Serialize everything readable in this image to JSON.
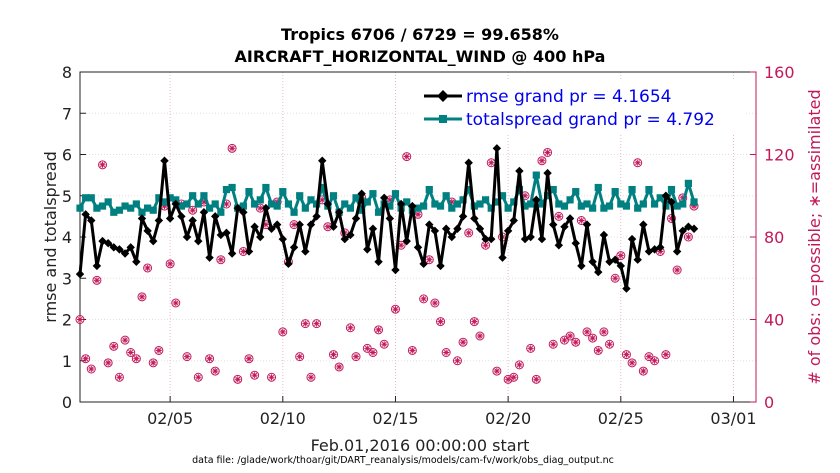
{
  "chart_data": {
    "type": "line",
    "title_line1": "Tropics 6706 / 6729 = 99.658%",
    "title_line2": "AIRCRAFT_HORIZONTAL_WIND @ 400 hPa",
    "xlabel": "Feb.01,2016 00:00:00 start",
    "ylabel_left": "rmse and totalspread",
    "ylabel_right": "# of obs: o=possible; ∗=assimilated",
    "footnote": "data file: /glade/work/thoar/git/DART_reanalysis/models/cam-fv/work/obs_diag_output.nc",
    "x_range_days": [
      1,
      31
    ],
    "x_ticks": [
      {
        "day": 5,
        "label": "02/05"
      },
      {
        "day": 10,
        "label": "02/10"
      },
      {
        "day": 15,
        "label": "02/15"
      },
      {
        "day": 20,
        "label": "02/20"
      },
      {
        "day": 25,
        "label": "02/25"
      },
      {
        "day": 30,
        "label": "03/01"
      }
    ],
    "y_left_range": [
      0,
      8
    ],
    "y_left_ticks": [
      "0",
      "1",
      "2",
      "3",
      "4",
      "5",
      "6",
      "7",
      "8"
    ],
    "y_right_range": [
      0,
      160
    ],
    "y_right_ticks": [
      "0",
      "40",
      "80",
      "120",
      "160"
    ],
    "colors": {
      "rmse": "#000000",
      "spread": "#008080",
      "obs": "#c2185b",
      "legend_text": "#0000ee"
    },
    "series": [
      {
        "name": "rmse grand pr = 4.1654",
        "key": "rmse",
        "marker": "diamond",
        "start_day": 1.0,
        "step_day": 0.25,
        "values": [
          3.1,
          4.55,
          4.4,
          3.3,
          3.9,
          3.85,
          3.75,
          3.7,
          3.6,
          3.75,
          3.4,
          4.45,
          4.15,
          3.9,
          4.4,
          5.85,
          4.45,
          4.8,
          4.5,
          4.0,
          4.4,
          3.9,
          4.6,
          3.5,
          4.5,
          4.05,
          4.1,
          3.6,
          4.7,
          4.6,
          3.65,
          4.25,
          4.0,
          4.7,
          4.2,
          4.3,
          3.95,
          3.35,
          3.75,
          4.3,
          3.65,
          4.3,
          4.5,
          5.85,
          4.8,
          4.25,
          4.6,
          3.95,
          4.05,
          4.45,
          5.05,
          3.7,
          4.2,
          3.4,
          4.95,
          4.45,
          3.2,
          4.8,
          3.9,
          4.75,
          3.75,
          3.35,
          4.3,
          4.15,
          3.3,
          4.2,
          4.0,
          4.2,
          4.5,
          5.8,
          4.45,
          4.2,
          3.95,
          3.95,
          6.15,
          3.5,
          4.15,
          4.4,
          5.6,
          3.95,
          4.0,
          4.9,
          3.95,
          5.55,
          4.3,
          3.8,
          4.25,
          4.45,
          3.85,
          3.3,
          4.3,
          3.4,
          3.15,
          4.05,
          3.4,
          3.45,
          3.3,
          2.75,
          3.95,
          3.45,
          4.3,
          3.65,
          3.7,
          3.75,
          5.0,
          4.85,
          3.65,
          4.15,
          4.25,
          4.2
        ]
      },
      {
        "name": "totalspread grand pr = 4.792",
        "key": "spread",
        "marker": "square",
        "start_day": 1.0,
        "step_day": 0.25,
        "values": [
          4.7,
          4.95,
          4.95,
          4.7,
          4.75,
          4.85,
          4.6,
          4.65,
          4.75,
          4.7,
          4.8,
          4.6,
          4.7,
          4.65,
          4.95,
          4.85,
          4.95,
          4.9,
          4.75,
          4.8,
          5.0,
          4.8,
          5.0,
          4.7,
          4.8,
          4.6,
          5.15,
          5.2,
          4.7,
          4.75,
          5.1,
          4.8,
          4.9,
          5.2,
          4.8,
          4.75,
          5.1,
          4.8,
          4.6,
          5.0,
          4.7,
          4.9,
          4.8,
          5.2,
          4.75,
          5.0,
          4.6,
          4.8,
          4.7,
          4.95,
          4.65,
          4.85,
          5.05,
          4.6,
          4.8,
          4.75,
          5.05,
          4.7,
          4.85,
          4.65,
          4.7,
          4.75,
          5.15,
          4.8,
          4.75,
          5.0,
          4.7,
          4.8,
          4.9,
          5.15,
          4.75,
          4.8,
          4.9,
          4.7,
          4.85,
          5.0,
          4.7,
          4.85,
          5.15,
          4.75,
          4.8,
          5.5,
          4.8,
          5.0,
          5.15,
          4.8,
          4.75,
          4.9,
          5.1,
          4.75,
          4.8,
          4.7,
          5.2,
          4.7,
          4.75,
          5.1,
          4.8,
          4.75,
          5.15,
          4.7,
          4.8,
          5.15,
          4.8,
          4.95,
          4.75,
          5.15,
          4.75,
          4.8,
          5.3,
          4.85
        ]
      },
      {
        "name": "obs possible/assimilated",
        "key": "obs",
        "marker": "circle-star",
        "start_day": 1.0,
        "step_day": 0.25,
        "values": [
          40,
          21,
          16,
          59,
          115,
          19,
          27,
          12,
          30,
          24,
          21,
          51,
          65,
          19,
          25,
          95,
          67,
          48,
          96,
          22,
          93,
          12,
          97,
          21,
          15,
          69,
          96,
          123,
          11,
          73,
          21,
          13,
          94,
          86,
          12,
          97,
          34,
          68,
          86,
          22,
          38,
          12,
          38,
          98,
          85,
          23,
          17,
          82,
          36,
          22,
          99,
          26,
          24,
          35,
          28,
          98,
          45,
          76,
          119,
          25,
          91,
          50,
          69,
          48,
          39,
          24,
          97,
          20,
          29,
          82,
          39,
          32,
          76,
          116,
          15,
          80,
          11,
          12,
          18,
          100,
          26,
          11,
          117,
          121,
          28,
          90,
          30,
          32,
          29,
          88,
          34,
          31,
          25,
          34,
          28,
          60,
          71,
          23,
          19,
          116,
          15,
          22,
          20,
          73,
          23,
          89,
          64,
          99,
          80,
          95
        ]
      }
    ]
  }
}
